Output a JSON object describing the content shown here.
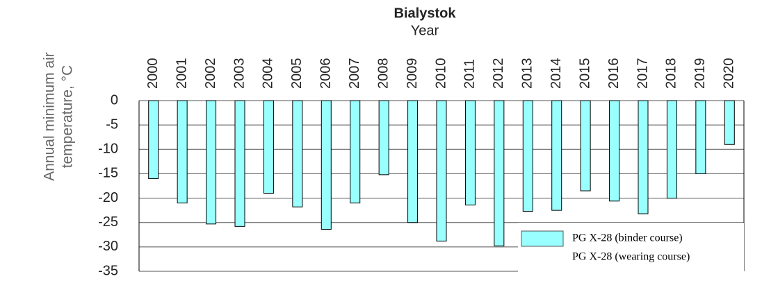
{
  "chart_data": {
    "type": "bar",
    "title": "Bialystok",
    "x_label": "Year",
    "y_label": [
      "Annual minimum air",
      "temperature, °C"
    ],
    "categories": [
      "2000",
      "2001",
      "2002",
      "2003",
      "2004",
      "2005",
      "2006",
      "2007",
      "2008",
      "2009",
      "2010",
      "2011",
      "2012",
      "2013",
      "2014",
      "2015",
      "2016",
      "2017",
      "2018",
      "2019",
      "2020"
    ],
    "series": [
      {
        "name": "PG X-28 (binder course)",
        "color": "#99ffff",
        "values": [
          -16,
          -21,
          -25.3,
          -25.8,
          -19,
          -21.8,
          -26.4,
          -21,
          -15.2,
          -25,
          -28.8,
          -21.4,
          -29.8,
          -22.7,
          -22.5,
          -18.5,
          -20.6,
          -23.2,
          -20,
          -15,
          -9
        ]
      },
      {
        "name": "PG X-28 (wearing course)",
        "color": null,
        "values": [
          null,
          null,
          null,
          null,
          null,
          null,
          null,
          null,
          null,
          null,
          null,
          null,
          null,
          null,
          null,
          null,
          null,
          null,
          null,
          null,
          null
        ]
      }
    ],
    "ylim": [
      -35,
      0
    ],
    "yticks": [
      0,
      -5,
      -10,
      -15,
      -20,
      -25,
      -30,
      -35
    ],
    "grid": true,
    "legend": "lower right"
  }
}
